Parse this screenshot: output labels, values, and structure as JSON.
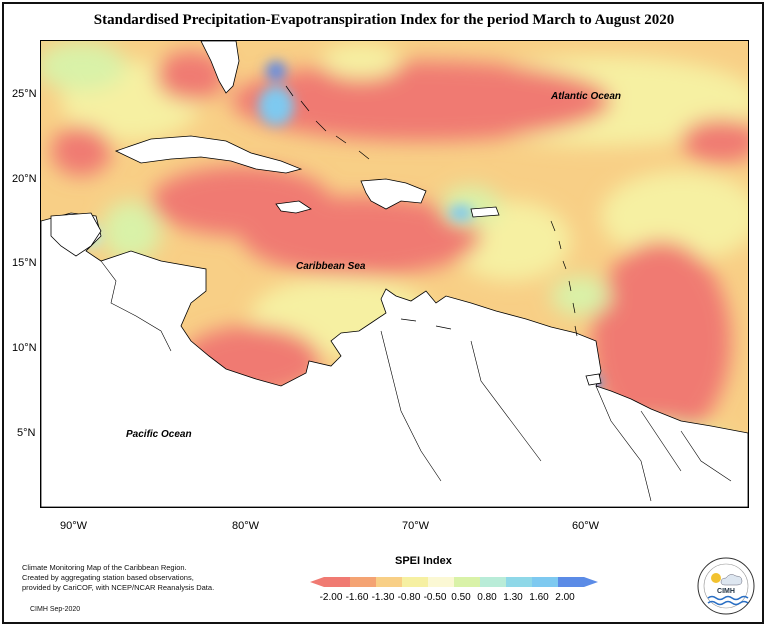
{
  "title": "Standardised Precipitation-Evapotranspiration Index for the period March to August 2020",
  "map": {
    "labels": {
      "atlantic": "Atlantic Ocean",
      "caribbean": "Caribbean Sea",
      "pacific": "Pacific Ocean"
    },
    "lat_ticks": [
      "25°N",
      "20°N",
      "15°N",
      "10°N",
      "5°N"
    ],
    "lon_ticks": [
      "90°W",
      "80°W",
      "70°W",
      "60°W"
    ],
    "colors": {
      "dry_extreme": "#f07a72",
      "dry_moderate": "#f4a373",
      "dry_mild": "#f8cf86",
      "near_normal": "#f6f0a2",
      "wet_mild": "#d9f2a8",
      "wet_moderate": "#b9ecd8",
      "wet_strong": "#7ec9f0",
      "wet_extreme": "#5b8be6",
      "land": "#ffffff"
    }
  },
  "legend": {
    "title": "SPEI Index",
    "ticks": [
      "-2.00",
      "-1.60",
      "-1.30",
      "-0.80",
      "-0.50",
      "0.50",
      "0.80",
      "1.30",
      "1.60",
      "2.00"
    ],
    "bins": [
      "#f07a72",
      "#f4a373",
      "#f8cf86",
      "#f6f0a2",
      "#fbf8d4",
      "#d9f2a8",
      "#b9ecd8",
      "#8fd8e8",
      "#7ec9f0",
      "#5b8be6"
    ]
  },
  "credits": {
    "line1": "Climate Monitoring Map of the Caribbean Region.",
    "line2": "Created by aggregating station based observations,",
    "line3": "provided by CariCOF, with NCEP/NCAR Reanalysis Data.",
    "line4": "CIMH Sep-2020"
  },
  "logo": {
    "text": "CIMH"
  }
}
